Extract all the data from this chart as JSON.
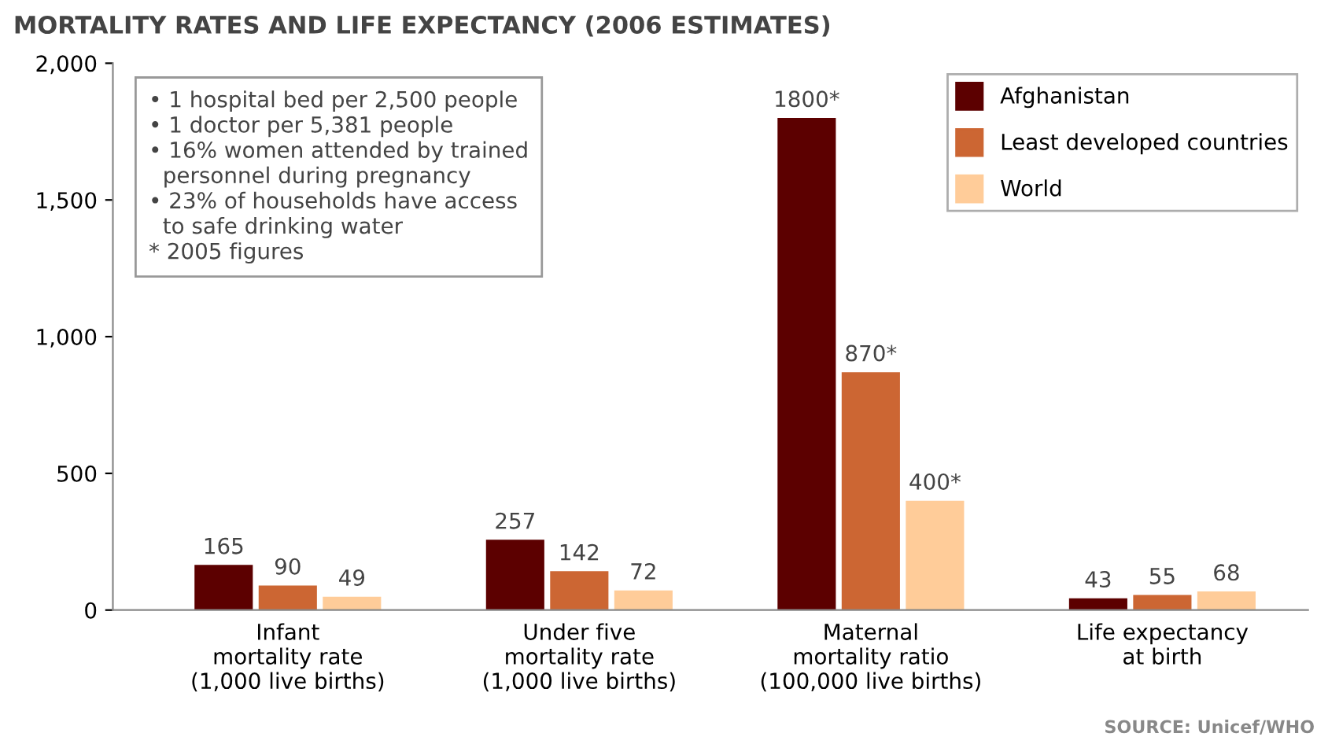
{
  "chart_data": {
    "type": "bar",
    "title": "MORTALITY RATES AND LIFE EXPECTANCY (2006 ESTIMATES)",
    "categories": [
      "Infant\nmortality rate\n(1,000 live births)",
      "Under five\nmortality rate\n(1,000 live births)",
      "Maternal\nmortality ratio\n(100,000 live births)",
      "Life expectancy\nat birth"
    ],
    "series": [
      {
        "name": "Afghanistan",
        "color": "#5c0000",
        "values": [
          165,
          257,
          1800,
          43
        ],
        "value_labels": [
          "165",
          "257",
          "1800*",
          "43"
        ]
      },
      {
        "name": "Least developed countries",
        "color": "#cc6633",
        "values": [
          90,
          142,
          870,
          55
        ],
        "value_labels": [
          "90",
          "142",
          "870*",
          "55"
        ]
      },
      {
        "name": "World",
        "color": "#ffcc99",
        "values": [
          49,
          72,
          400,
          68
        ],
        "value_labels": [
          "49",
          "72",
          "400*",
          "68"
        ]
      }
    ],
    "ylim": [
      0,
      2000
    ],
    "yticks": [
      0,
      500,
      {
        "value": 1000,
        "label": "1,000"
      },
      {
        "value": 1500,
        "label": "1,500"
      },
      {
        "value": 2000,
        "label": "2,000"
      }
    ],
    "grid": false,
    "legend": "top right",
    "annotations": [
      "• 1 hospital bed per 2,500 people\n• 1 doctor per 5,381 people\n• 16% women attended by trained\n  personnel during pregnancy\n• 23% of households have access\n  to safe drinking water\n* 2005 figures",
      "SOURCE: Unicef/WHO"
    ]
  }
}
